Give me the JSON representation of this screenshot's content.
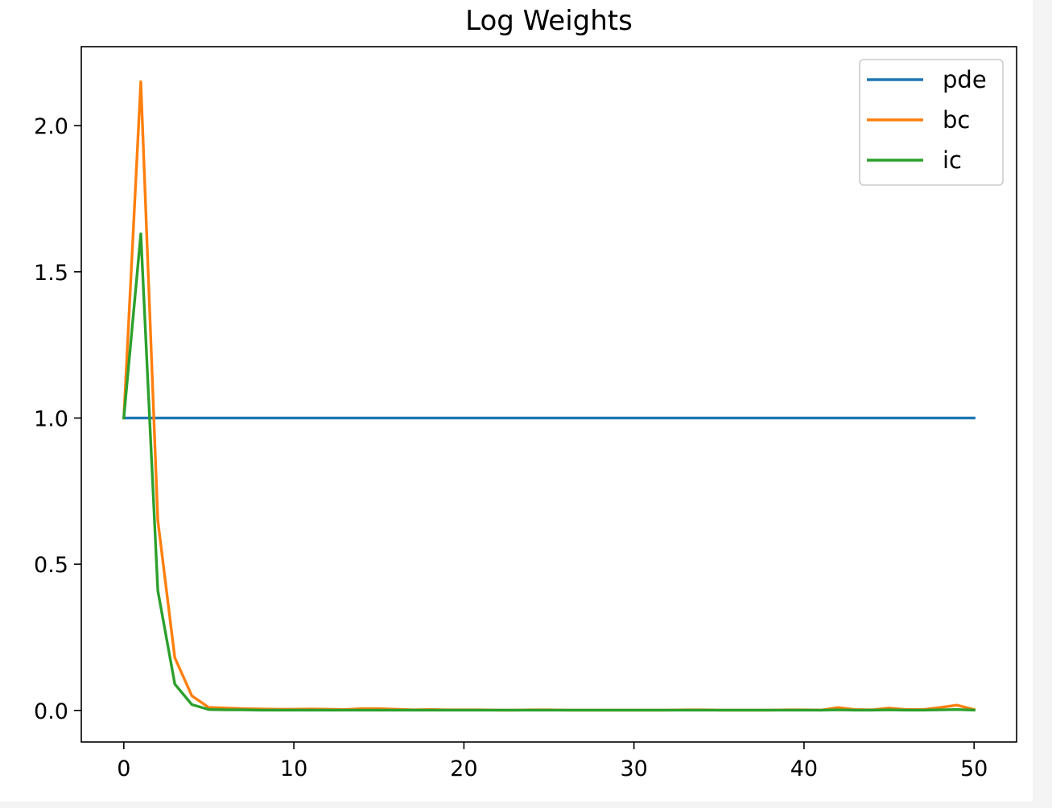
{
  "chart_data": {
    "type": "line",
    "title": "Log Weights",
    "xlabel": "",
    "ylabel": "",
    "xlim": [
      -2.5,
      52.5
    ],
    "ylim": [
      -0.108,
      2.27
    ],
    "xticks": [
      0,
      10,
      20,
      30,
      40,
      50
    ],
    "xtick_labels": [
      "0",
      "10",
      "20",
      "30",
      "40",
      "50"
    ],
    "yticks": [
      0.0,
      0.5,
      1.0,
      1.5,
      2.0
    ],
    "ytick_labels": [
      "0.0",
      "0.5",
      "1.0",
      "1.5",
      "2.0"
    ],
    "grid": false,
    "legend_position": "top-right",
    "x": [
      0,
      1,
      2,
      3,
      4,
      5,
      6,
      7,
      8,
      9,
      10,
      11,
      12,
      13,
      14,
      15,
      16,
      17,
      18,
      19,
      20,
      21,
      22,
      23,
      24,
      25,
      26,
      27,
      28,
      29,
      30,
      31,
      32,
      33,
      34,
      35,
      36,
      37,
      38,
      39,
      40,
      41,
      42,
      43,
      44,
      45,
      46,
      47,
      48,
      49,
      50
    ],
    "series": [
      {
        "name": "pde",
        "color": "#1f77b4",
        "values": [
          1,
          1,
          1,
          1,
          1,
          1,
          1,
          1,
          1,
          1,
          1,
          1,
          1,
          1,
          1,
          1,
          1,
          1,
          1,
          1,
          1,
          1,
          1,
          1,
          1,
          1,
          1,
          1,
          1,
          1,
          1,
          1,
          1,
          1,
          1,
          1,
          1,
          1,
          1,
          1,
          1,
          1,
          1,
          1,
          1,
          1,
          1,
          1,
          1,
          1,
          1
        ]
      },
      {
        "name": "bc",
        "color": "#ff7f0e",
        "values": [
          1.0,
          2.15,
          0.65,
          0.18,
          0.05,
          0.01,
          0.008,
          0.006,
          0.005,
          0.004,
          0.004,
          0.005,
          0.004,
          0.003,
          0.006,
          0.006,
          0.004,
          0.002,
          0.003,
          0.002,
          0.002,
          0.002,
          0.001,
          0.001,
          0.002,
          0.002,
          0.001,
          0.001,
          0.001,
          0.001,
          0.001,
          0.001,
          0.001,
          0.002,
          0.002,
          0.001,
          0.001,
          0.001,
          0.001,
          0.002,
          0.002,
          0.001,
          0.01,
          0.003,
          0.002,
          0.008,
          0.003,
          0.003,
          0.01,
          0.018,
          0.003
        ]
      },
      {
        "name": "ic",
        "color": "#2ca02c",
        "values": [
          1.0,
          1.63,
          0.41,
          0.09,
          0.02,
          0.003,
          0.002,
          0.002,
          0.001,
          0.001,
          0.001,
          0.001,
          0.001,
          0.001,
          0.001,
          0.001,
          0.001,
          0.001,
          0.001,
          0.001,
          0.001,
          0.001,
          0.001,
          0.001,
          0.001,
          0.001,
          0.001,
          0.001,
          0.001,
          0.001,
          0.001,
          0.001,
          0.001,
          0.001,
          0.001,
          0.001,
          0.001,
          0.001,
          0.001,
          0.001,
          0.001,
          0.001,
          0.002,
          0.001,
          0.001,
          0.002,
          0.001,
          0.001,
          0.002,
          0.003,
          0.001
        ]
      }
    ]
  }
}
